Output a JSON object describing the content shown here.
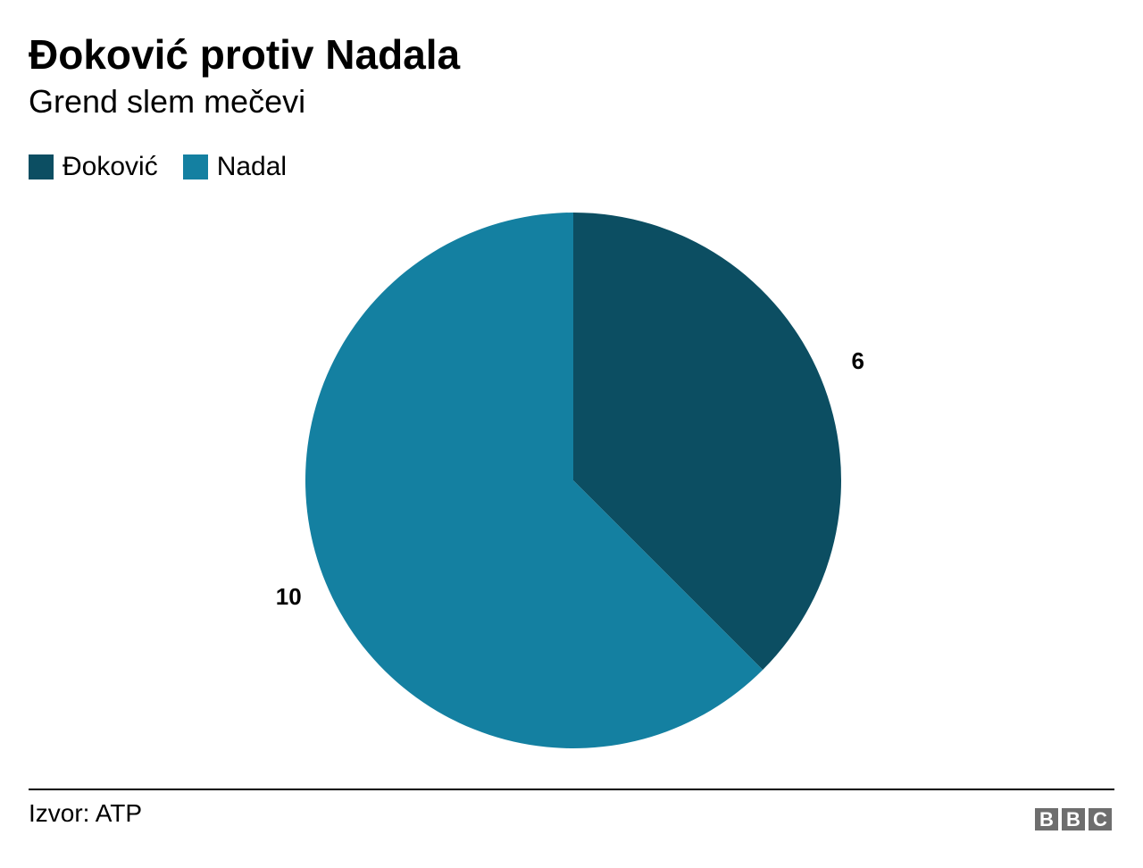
{
  "chart_data": {
    "type": "pie",
    "title": "Đoković protiv Nadala",
    "subtitle": "Grend slem mečevi",
    "legend_position": "top-left",
    "slices": [
      {
        "label": "Đoković",
        "value": 6,
        "color": "#0c4e62"
      },
      {
        "label": "Nadal",
        "value": 10,
        "color": "#1480a1"
      }
    ]
  },
  "footer": {
    "source": "Izvor: ATP",
    "logo": [
      "B",
      "B",
      "C"
    ]
  }
}
